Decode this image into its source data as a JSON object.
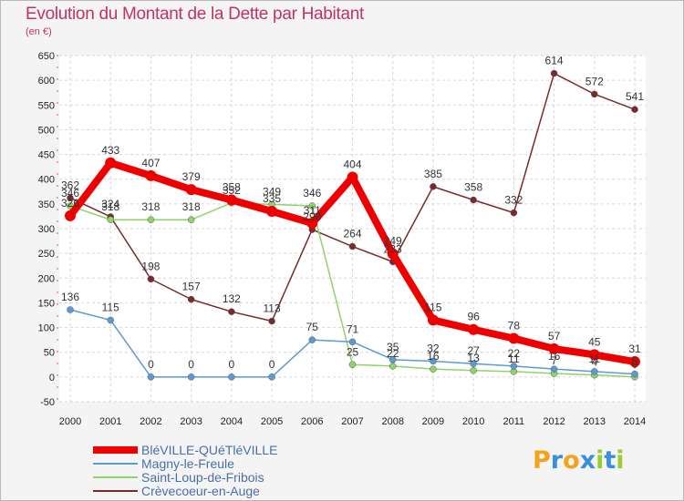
{
  "header": {
    "title": "Evolution du Montant de la Dette par Habitant",
    "unit": "(en €)"
  },
  "logo": {
    "letters": [
      "P",
      "r",
      "o",
      "x",
      "i",
      "t",
      "i"
    ],
    "colors": [
      "#f2a31b",
      "#3b8fd6",
      "#f2a31b",
      "#3b8fd6",
      "#9acd32",
      "#3b8fd6",
      "#9acd32"
    ]
  },
  "chart_data": {
    "type": "line",
    "title": "Evolution du Montant de la Dette par Habitant",
    "ylabel": "(en €)",
    "xlabel": "",
    "x": [
      "2000",
      "2001",
      "2002",
      "2003",
      "2004",
      "2005",
      "2006",
      "2007",
      "2008",
      "2009",
      "2010",
      "2011",
      "2012",
      "2013",
      "2014"
    ],
    "ylim": [
      -50,
      650
    ],
    "yticks": [
      "-50",
      "0",
      "50",
      "100",
      "150",
      "200",
      "250",
      "300",
      "350",
      "400",
      "450",
      "500",
      "550",
      "600",
      "650"
    ],
    "grid": true,
    "legend_position": "bottom-left",
    "series": [
      {
        "name": "BléVILLE-QUéTléVILLE",
        "color": "#ee0000",
        "values": [
          326,
          433,
          407,
          379,
          358,
          335,
          311,
          404,
          249,
          115,
          96,
          78,
          57,
          45,
          31
        ],
        "labels": [
          "326",
          "433",
          "407",
          "379",
          "358",
          "335",
          "311",
          "404",
          "249",
          "115",
          "96",
          "78",
          "57",
          "45",
          "31"
        ]
      },
      {
        "name": "Magny-le-Freule",
        "color": "#5b9bd5",
        "values": [
          136,
          115,
          0,
          0,
          0,
          0,
          75,
          71,
          35,
          32,
          27,
          22,
          16,
          11,
          6
        ],
        "labels": [
          "136",
          "115",
          "0",
          "0",
          "0",
          "0",
          "75",
          "71",
          "35",
          "32",
          "27",
          "22",
          "16",
          "11",
          "6"
        ]
      },
      {
        "name": "Saint-Loup-de-Fribois",
        "color": "#8fd46a",
        "values": [
          346,
          318,
          318,
          318,
          352,
          349,
          346,
          25,
          22,
          16,
          13,
          11,
          7,
          4,
          0
        ],
        "labels": [
          "346",
          "318",
          "318",
          "318",
          "352",
          "349",
          "346",
          "25",
          "22",
          "16",
          "13",
          "11",
          "7",
          "4",
          "0"
        ]
      },
      {
        "name": "Crèvecoeur-en-Auge",
        "color": "#7a2a2a",
        "values": [
          362,
          324,
          198,
          157,
          132,
          113,
          298,
          264,
          233,
          385,
          358,
          332,
          614,
          572,
          541
        ],
        "labels": [
          "362",
          "324",
          "198",
          "157",
          "132",
          "113",
          "298",
          "264",
          "233",
          "385",
          "358",
          "332",
          "614",
          "572",
          "541"
        ]
      }
    ]
  }
}
